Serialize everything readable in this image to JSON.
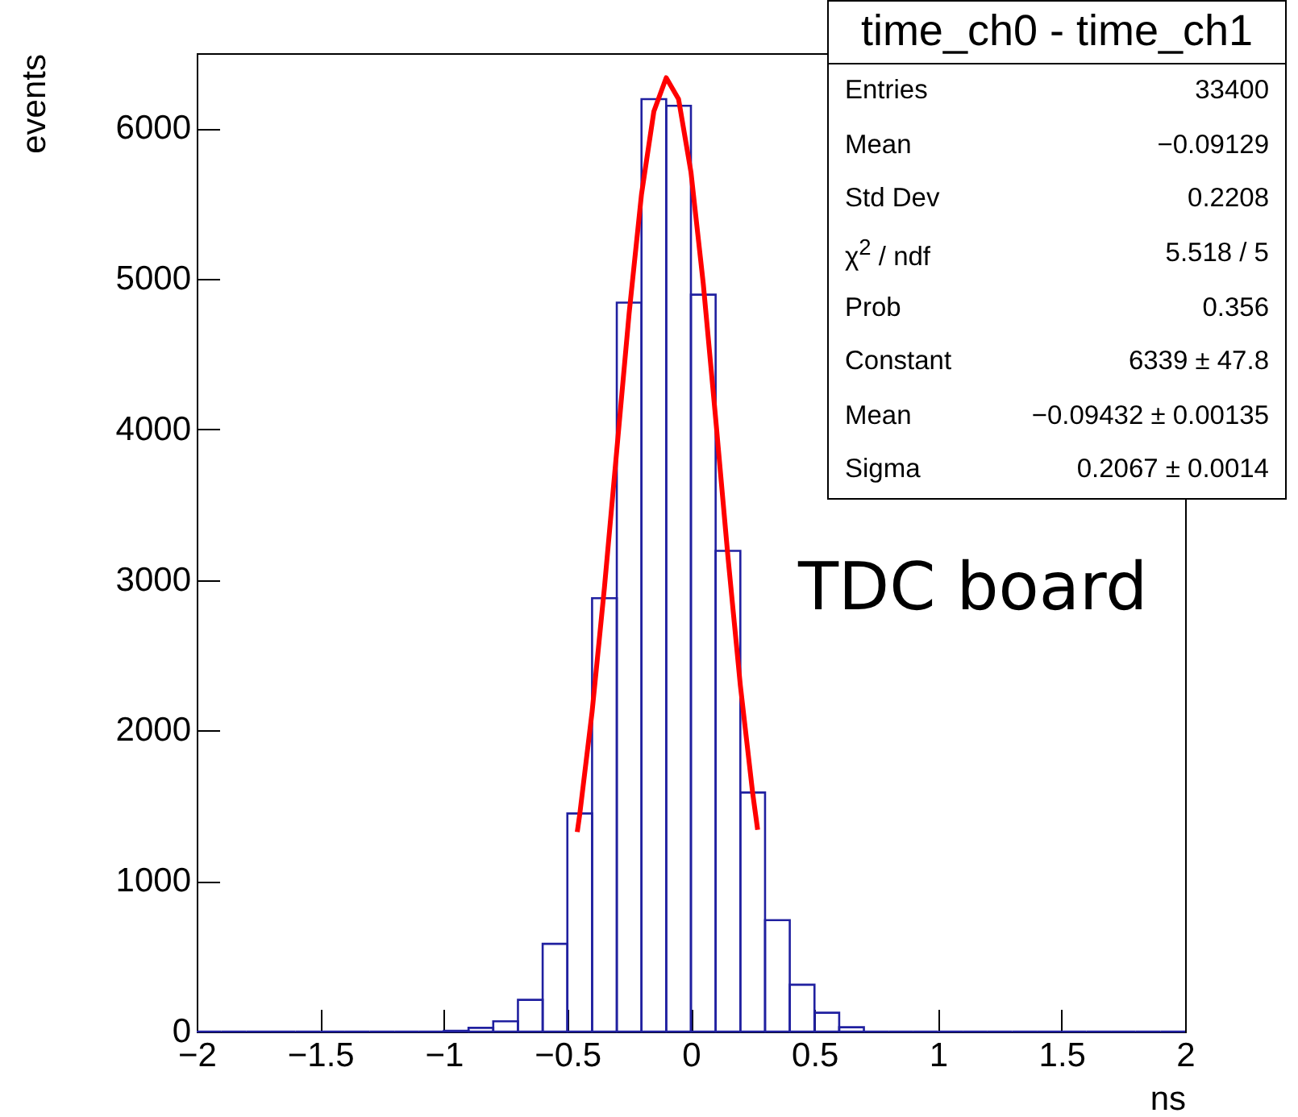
{
  "chart_data": {
    "type": "histogram",
    "title": "time_ch0 - time_ch1",
    "xlabel": "ns",
    "ylabel": "events",
    "bins": [
      -2,
      -1.9,
      -1.8,
      -1.7,
      -1.6,
      -1.5,
      -1.4,
      -1.3,
      -1.2,
      -1.1,
      -1,
      -0.9,
      -0.8,
      -0.7,
      -0.6,
      -0.5,
      -0.4,
      -0.3,
      -0.2,
      -0.1,
      0,
      0.1,
      0.2,
      0.3,
      0.4,
      0.5,
      0.6,
      0.7,
      0.8,
      0.9,
      1,
      1.1,
      1.2,
      1.3,
      1.4,
      1.5,
      1.6,
      1.7,
      1.8,
      1.9,
      2
    ],
    "values": [
      0,
      0,
      0,
      0,
      0,
      0,
      0,
      0,
      0,
      0,
      5,
      25,
      68,
      211,
      583,
      1449,
      2879,
      4843,
      6195,
      6151,
      4896,
      3194,
      1588,
      740,
      311,
      125,
      29,
      0,
      0,
      0,
      0,
      0,
      0,
      0,
      0,
      0,
      0,
      0,
      0,
      0
    ],
    "color": "#2020a0",
    "series": [
      {
        "type": "line",
        "color": "#ff0000",
        "x": [
          -0.46,
          -0.45,
          -0.4,
          -0.35,
          -0.3,
          -0.25,
          -0.2,
          -0.15,
          -0.1,
          -0.05,
          0,
          0.05,
          0.1,
          0.15,
          0.2,
          0.25,
          0.27
        ],
        "values": [
          1326,
          1442,
          2124,
          2950,
          3863,
          4773,
          5563,
          6113,
          6337,
          6195,
          5712,
          4968,
          4075,
          3152,
          2300,
          1583,
          1341
        ]
      }
    ],
    "xlim": [
      -2,
      2
    ],
    "xticks": [
      -2,
      -1.5,
      -1,
      -0.5,
      0,
      0.5,
      1,
      1.5,
      2
    ],
    "ylim": [
      0,
      6500
    ],
    "yticks": [
      0,
      1000,
      2000,
      3000,
      4000,
      5000,
      6000
    ],
    "annotations": [
      "Entries\t33400",
      "Mean\t−0.09129",
      "Std Dev\t0.2208",
      "χ$^{2}$ / ndf\t5.518 / 5",
      "Prob\t0.356",
      "Constant\t6339 ± 47.8",
      "Mean\t−0.09432 ± 0.00135",
      "Sigma\t0.2067 ± 0.0014",
      "TDC board"
    ]
  }
}
